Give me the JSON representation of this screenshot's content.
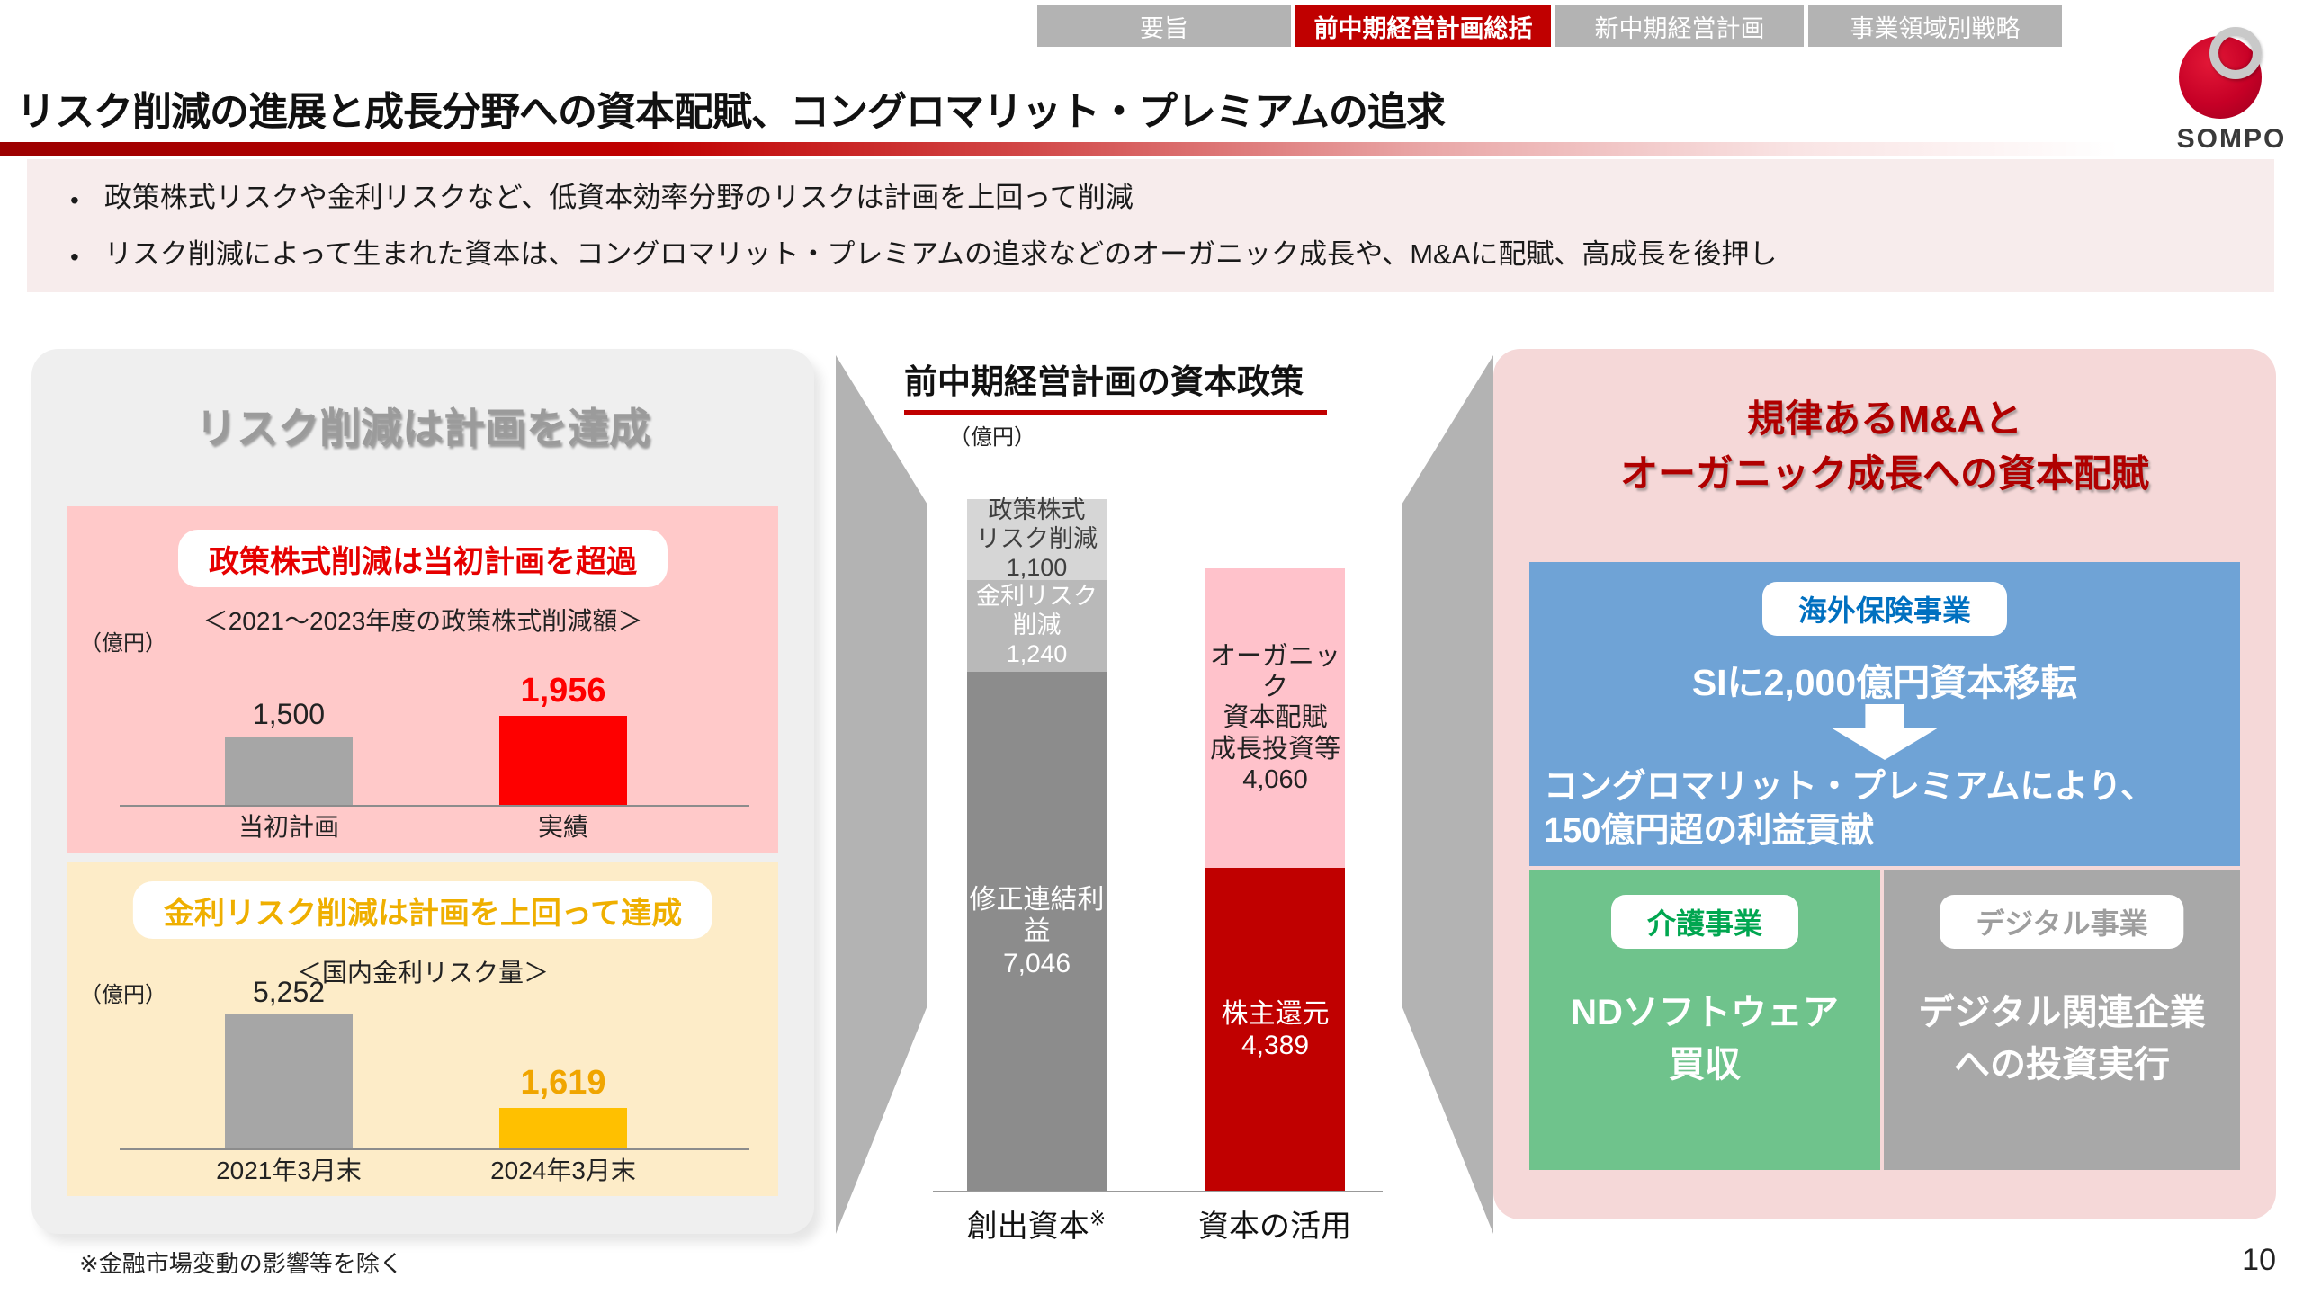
{
  "tabs": [
    {
      "label": "要旨",
      "active": false
    },
    {
      "label": "前中期経営計画総括",
      "active": true
    },
    {
      "label": "新中期経営計画",
      "active": false
    },
    {
      "label": "事業領域別戦略",
      "active": false
    }
  ],
  "header": {
    "title": "リスク削減の進展と成長分野への資本配賦、コングロマリット・プレミアムの追求"
  },
  "logo": {
    "brand": "SOMPO"
  },
  "summary": {
    "bullets": [
      "政策株式リスクや金利リスクなど、低資本効率分野のリスクは計画を上回って削減",
      "リスク削減によって生まれた資本は、コングロマリット・プレミアムの追求などのオーガニック成長や、M&Aに配賦、高成長を後押し"
    ]
  },
  "left_panel": {
    "heading": "リスク削減は計画を達成",
    "stock_box": {
      "title": "政策株式削減は当初計画を超過",
      "subtitle": "＜2021～2023年度の政策株式削減額＞",
      "unit": "（億円）",
      "bars": [
        {
          "value_label": "1,500",
          "axis_label": "当初計画"
        },
        {
          "value_label": "1,956",
          "axis_label": "実績"
        }
      ]
    },
    "rate_box": {
      "title": "金利リスク削減は計画を上回って達成",
      "subtitle": "＜国内金利リスク量＞",
      "unit": "（億円）",
      "bars": [
        {
          "value_label": "5,252",
          "axis_label": "2021年3月末"
        },
        {
          "value_label": "1,619",
          "axis_label": "2024年3月末"
        }
      ]
    }
  },
  "middle": {
    "title": "前中期経営計画の資本政策",
    "unit": "（億円）",
    "left_column": {
      "segments": [
        {
          "text": "政策株式\nリスク削減\n1,100"
        },
        {
          "text": "金利リスク\n削減\n1,240"
        },
        {
          "text": "修正連結利益\n7,046"
        }
      ],
      "axis_label": "創出資本",
      "axis_note": "※"
    },
    "right_column": {
      "segments": [
        {
          "text": "オーガニック\n資本配賦\n成長投資等\n4,060"
        },
        {
          "text": "株主還元\n4,389"
        }
      ],
      "axis_label": "資本の活用"
    }
  },
  "right_panel": {
    "title": "規律あるM&Aと\nオーガニック成長への資本配賦",
    "overseas": {
      "badge": "海外保険事業",
      "line1": "SIに2,000億円資本移転",
      "line2": "コングロマリット・プレミアムにより、\n150億円超の利益貢献"
    },
    "nursing": {
      "badge": "介護事業",
      "text": "NDソフトウェア\n買収"
    },
    "digital": {
      "badge": "デジタル事業",
      "text": "デジタル関連企業\nへの投資実行"
    }
  },
  "footnote": "※金融市場変動の影響等を除く",
  "page_number": "10",
  "colors": {
    "accent_red": "#c00000",
    "tab_gray": "#b3b3b3",
    "bullet_bg": "#f7ecec",
    "left_panel_bg": "#efefef",
    "stock_box_bg": "#ffc9c9",
    "stock_title_red": "#e60000",
    "rate_box_bg": "#fdecc8",
    "rate_title_gold": "#efaf00",
    "bar_gray": "#a6a6a6",
    "bar_red": "#fe0000",
    "bar_gold": "#ffc000",
    "segment_light_gray": "#d6d6d6",
    "segment_mid_gray": "#b9b9b9",
    "segment_dark_gray": "#8c8c8c",
    "segment_pink": "#ffc2cb",
    "segment_dark_red": "#c00000",
    "funnel_gray": "#b3b3b3",
    "right_panel_bg": "#f5d8d8",
    "right_title_red": "#b00000",
    "overseas_blue": "#6fa3d6",
    "overseas_text_blue": "#0070c0",
    "nursing_green": "#6fc38c",
    "nursing_text_green": "#00a650",
    "digital_gray": "#a8a8a8",
    "logo_red": "#c60026"
  },
  "chart_data": [
    {
      "type": "bar",
      "title": "政策株式削減は当初計画を超過",
      "subtitle": "＜2021～2023年度の政策株式削減額＞",
      "ylabel": "億円",
      "categories": [
        "当初計画",
        "実績"
      ],
      "values": [
        1500,
        1956
      ],
      "colors": [
        "#a6a6a6",
        "#fe0000"
      ]
    },
    {
      "type": "bar",
      "title": "金利リスク削減は計画を上回って達成",
      "subtitle": "＜国内金利リスク量＞",
      "ylabel": "億円",
      "categories": [
        "2021年3月末",
        "2024年3月末"
      ],
      "values": [
        5252,
        1619
      ],
      "colors": [
        "#a6a6a6",
        "#ffc000"
      ]
    },
    {
      "type": "bar",
      "stacked": true,
      "title": "前中期経営計画の資本政策",
      "ylabel": "億円",
      "categories": [
        "創出資本※",
        "資本の活用"
      ],
      "columns": [
        {
          "label": "創出資本※",
          "segments": [
            {
              "name": "政策株式リスク削減",
              "value": 1100,
              "color": "#d6d6d6"
            },
            {
              "name": "金利リスク削減",
              "value": 1240,
              "color": "#b9b9b9"
            },
            {
              "name": "修正連結利益",
              "value": 7046,
              "color": "#8c8c8c"
            }
          ]
        },
        {
          "label": "資本の活用",
          "segments": [
            {
              "name": "オーガニック資本配賦・成長投資等",
              "value": 4060,
              "color": "#ffc2cb"
            },
            {
              "name": "株主還元",
              "value": 4389,
              "color": "#c00000"
            }
          ]
        }
      ]
    }
  ]
}
